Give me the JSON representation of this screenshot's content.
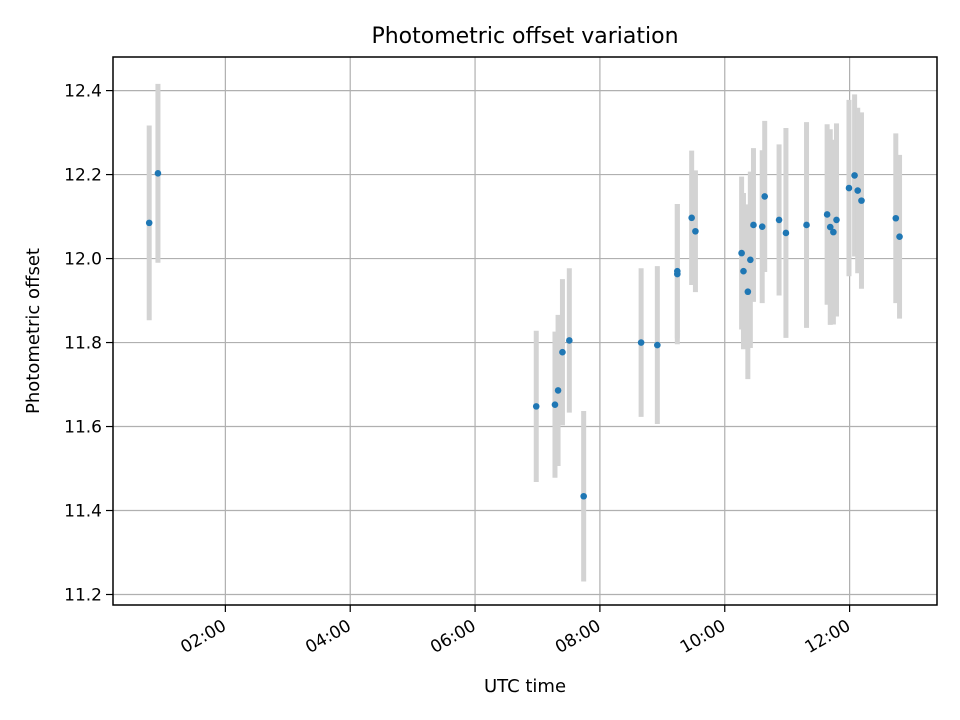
{
  "chart_data": {
    "type": "scatter",
    "title": "Photometric offset variation",
    "xlabel": "UTC time",
    "ylabel": "Photometric offset",
    "x_unit": "hours UTC",
    "xlim": [
      0.2,
      13.4
    ],
    "ylim": [
      11.175,
      12.48
    ],
    "x_ticks": [
      2,
      4,
      6,
      8,
      10,
      12
    ],
    "x_tick_labels": [
      "02:00",
      "04:00",
      "06:00",
      "08:00",
      "10:00",
      "12:00"
    ],
    "y_ticks": [
      11.2,
      11.4,
      11.6,
      11.8,
      12.0,
      12.2,
      12.4
    ],
    "y_tick_labels": [
      "11.2",
      "11.4",
      "11.6",
      "11.8",
      "12.0",
      "12.2",
      "12.4"
    ],
    "grid": true,
    "error_bar_color": "#d3d3d3",
    "marker_color": "#1f77b4",
    "points": [
      {
        "x": 0.78,
        "y": 12.085,
        "yerr": 0.232
      },
      {
        "x": 0.92,
        "y": 12.203,
        "yerr": 0.213
      },
      {
        "x": 6.98,
        "y": 11.648,
        "yerr": 0.18
      },
      {
        "x": 7.28,
        "y": 11.652,
        "yerr": 0.174
      },
      {
        "x": 7.33,
        "y": 11.686,
        "yerr": 0.18
      },
      {
        "x": 7.4,
        "y": 11.777,
        "yerr": 0.174
      },
      {
        "x": 7.51,
        "y": 11.805,
        "yerr": 0.172
      },
      {
        "x": 7.74,
        "y": 11.434,
        "yerr": 0.203
      },
      {
        "x": 8.66,
        "y": 11.8,
        "yerr": 0.177
      },
      {
        "x": 8.92,
        "y": 11.794,
        "yerr": 0.188
      },
      {
        "x": 9.24,
        "y": 11.963,
        "yerr": 0.167
      },
      {
        "x": 9.24,
        "y": 11.97,
        "yerr": 0.16
      },
      {
        "x": 9.47,
        "y": 12.097,
        "yerr": 0.16
      },
      {
        "x": 9.53,
        "y": 12.065,
        "yerr": 0.145
      },
      {
        "x": 10.27,
        "y": 12.013,
        "yerr": 0.182
      },
      {
        "x": 10.3,
        "y": 11.97,
        "yerr": 0.186
      },
      {
        "x": 10.37,
        "y": 11.921,
        "yerr": 0.208
      },
      {
        "x": 10.41,
        "y": 11.997,
        "yerr": 0.21
      },
      {
        "x": 10.46,
        "y": 12.08,
        "yerr": 0.183
      },
      {
        "x": 10.6,
        "y": 12.076,
        "yerr": 0.182
      },
      {
        "x": 10.64,
        "y": 12.148,
        "yerr": 0.18
      },
      {
        "x": 10.87,
        "y": 12.092,
        "yerr": 0.18
      },
      {
        "x": 10.98,
        "y": 12.061,
        "yerr": 0.25
      },
      {
        "x": 11.31,
        "y": 12.08,
        "yerr": 0.245
      },
      {
        "x": 11.64,
        "y": 12.105,
        "yerr": 0.215
      },
      {
        "x": 11.69,
        "y": 12.075,
        "yerr": 0.233
      },
      {
        "x": 11.74,
        "y": 12.063,
        "yerr": 0.22
      },
      {
        "x": 11.79,
        "y": 12.092,
        "yerr": 0.23
      },
      {
        "x": 11.99,
        "y": 12.168,
        "yerr": 0.21
      },
      {
        "x": 12.08,
        "y": 12.198,
        "yerr": 0.193
      },
      {
        "x": 12.13,
        "y": 12.162,
        "yerr": 0.197
      },
      {
        "x": 12.19,
        "y": 12.138,
        "yerr": 0.21
      },
      {
        "x": 12.74,
        "y": 12.096,
        "yerr": 0.202
      },
      {
        "x": 12.8,
        "y": 12.052,
        "yerr": 0.195
      }
    ]
  }
}
